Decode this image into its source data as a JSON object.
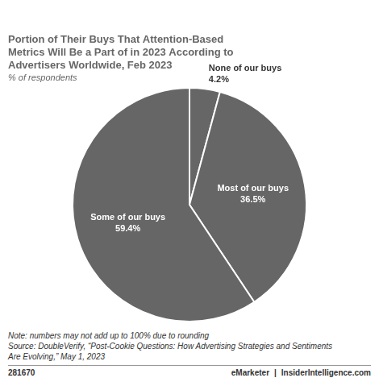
{
  "chart_data": {
    "type": "pie",
    "title": "Portion of Their Buys That Attention-Based\nMetrics Will Be a Part of in 2023 According to\nAdvertisers Worldwide, Feb 2023",
    "subtitle": "% of respondents",
    "categories": [
      "None of our buys",
      "Most of our buys",
      "Some of our buys"
    ],
    "values": [
      4.2,
      36.5,
      59.4
    ],
    "value_labels": [
      "4.2%",
      "36.5%",
      "59.4%"
    ],
    "data_labels": true,
    "color": "#666666",
    "legend": false,
    "annotations": [
      "Note: numbers may not add up to 100% due to rounding",
      "Source: DoubleVerify, “Post-Cookie Questions: How Advertising Strategies and Sentiments",
      "Are Evolving,” May 1, 2023"
    ],
    "footer": [
      "281670",
      "eMarketer",
      "|",
      "InsiderIntelligence.com"
    ]
  }
}
